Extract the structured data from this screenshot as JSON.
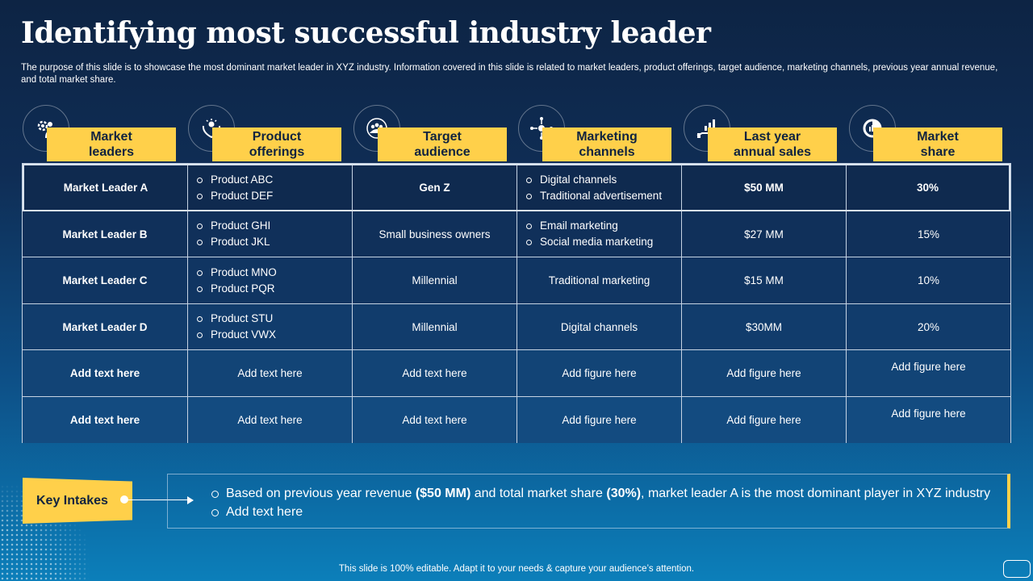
{
  "title": "Identifying most successful industry leader",
  "subtitle": "The purpose of this slide is to showcase the most dominant market leader in XYZ  industry. Information covered in this slide is related to market leaders, product offerings, target audience, marketing channels, previous year annual revenue, and total market share.",
  "headers": [
    {
      "line1": "Market",
      "line2": "leaders",
      "icon": "leader-gear-icon"
    },
    {
      "line1": "Product",
      "line2": "offerings",
      "icon": "hand-offering-icon"
    },
    {
      "line1": "Target",
      "line2": "audience",
      "icon": "audience-group-icon"
    },
    {
      "line1": "Marketing",
      "line2": "channels",
      "icon": "network-channels-icon"
    },
    {
      "line1": "Last year",
      "line2": "annual sales",
      "icon": "sales-growth-icon"
    },
    {
      "line1": "Market",
      "line2": "share",
      "icon": "pie-share-icon"
    }
  ],
  "rows": [
    {
      "leader": "Market Leader A",
      "products": [
        "Product ABC",
        "Product DEF"
      ],
      "audience": "Gen Z",
      "channels": [
        "Digital channels",
        "Traditional  advertisement"
      ],
      "sales": "$50 MM",
      "share": "30%"
    },
    {
      "leader": "Market Leader B",
      "products": [
        "Product GHI",
        "Product JKL"
      ],
      "audience": "Small business owners",
      "channels": [
        "Email marketing",
        "Social media marketing"
      ],
      "sales": "$27 MM",
      "share": "15%"
    },
    {
      "leader": "Market Leader C",
      "products": [
        "Product MNO",
        "Product PQR"
      ],
      "audience": "Millennial",
      "channels_text": "Traditional  marketing",
      "sales": "$15 MM",
      "share": "10%"
    },
    {
      "leader": "Market Leader D",
      "products": [
        "Product STU",
        "Product VWX"
      ],
      "audience": "Millennial",
      "channels_text": "Digital channels",
      "sales": "$30MM",
      "share": "20%"
    },
    {
      "leader": "Add text here",
      "products_text": "Add text here",
      "audience": "Add text here",
      "channels_text": "Add figure  here",
      "sales": "Add figure  here",
      "share": "Add figure  here"
    },
    {
      "leader": "Add text here",
      "products_text": "Add text here",
      "audience": "Add text here",
      "channels_text": "Add figure  here",
      "sales": "Add figure  here",
      "share": "Add figure  here"
    }
  ],
  "key_intakes": {
    "label": "Key Intakes",
    "point1_a": "Based on previous year revenue ",
    "point1_b": "($50 MM)",
    "point1_c": " and total market share ",
    "point1_d": "(30%)",
    "point1_e": ", market leader A is the most dominant player in XYZ industry",
    "point2": "Add text here"
  },
  "footer": "This slide is 100% editable. Adapt it to your needs & capture your audience’s attention.",
  "colors": {
    "accent": "#ffd04a",
    "background_top": "#0d2444",
    "background_bottom": "#0c7fba"
  }
}
